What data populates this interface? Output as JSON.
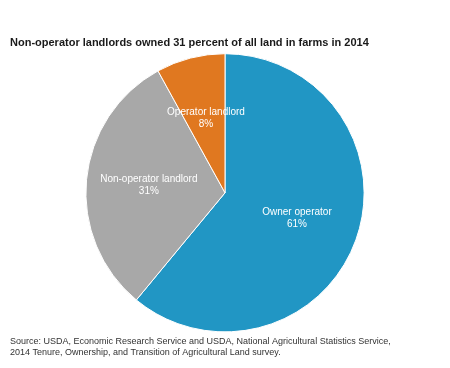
{
  "chart_data": {
    "type": "pie",
    "title": "Non-operator landlords owned 31 percent of all land in farms in 2014",
    "categories": [
      "Owner operator",
      "Non-operator landlord",
      "Operator landlord"
    ],
    "values": [
      61,
      31,
      8
    ],
    "value_labels": [
      "61%",
      "31%",
      "8%"
    ],
    "colors": [
      "#2196c4",
      "#a8a8a8",
      "#e07820"
    ],
    "data_labels": true,
    "annotations": [
      "Source: USDA, Economic Research Service and USDA, National Agricultural Statistics Service,\n2014 Tenure, Ownership, and Transition of Agricultural Land survey."
    ]
  }
}
